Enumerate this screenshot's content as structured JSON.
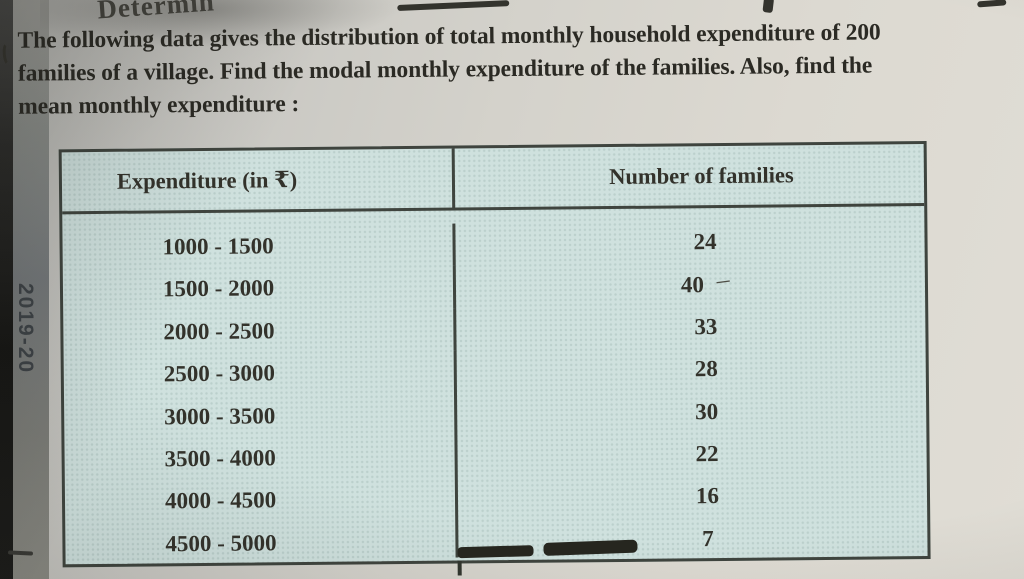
{
  "page": {
    "cut_off_line": "Determin",
    "margin_label": "2019-20",
    "problem_lines": [
      "The following data gives the distribution of total monthly household expenditure of 200",
      "families of a village. Find the modal monthly expenditure of the families. Also, find the",
      "mean monthly expenditure :"
    ]
  },
  "table": {
    "col1_header": "Expenditure (in ₹)",
    "col2_header": "Number of families",
    "rows": [
      {
        "range": "1000 - 1500",
        "count": "24"
      },
      {
        "range": "1500 - 2000",
        "count": "40"
      },
      {
        "range": "2000 - 2500",
        "count": "33"
      },
      {
        "range": "2500 - 3000",
        "count": "28"
      },
      {
        "range": "3000 - 3500",
        "count": "30"
      },
      {
        "range": "3500 - 4000",
        "count": "22"
      },
      {
        "range": "4000 - 4500",
        "count": "16"
      },
      {
        "range": "4500 - 5000",
        "count": "7"
      }
    ],
    "row2_annotation": "‒"
  },
  "colors": {
    "table_fill": "#cfe1de",
    "table_border": "#3f443e",
    "ink": "#2b2a24",
    "paper": "#d6d3cc",
    "spine": "#1b1b19"
  }
}
